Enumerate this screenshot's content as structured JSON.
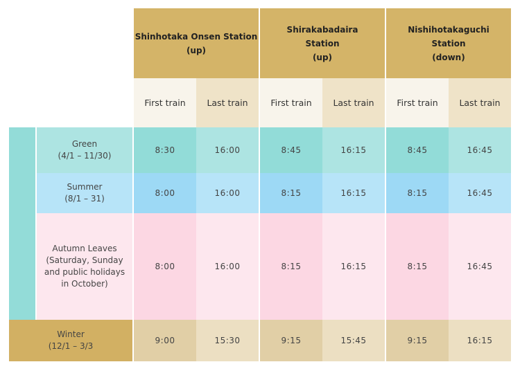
{
  "header": {
    "stations": [
      {
        "name": "Shinhotaka Onsen Station\n(up)"
      },
      {
        "name": "Shirakabadaira\nStation\n(up)"
      },
      {
        "name": "Nishihotakaguchi\nStation\n(down)"
      }
    ],
    "first_train": "First train",
    "last_train": "Last train"
  },
  "seasons": [
    {
      "label": "Green\n(4/1 – 11/30)",
      "times": [
        "8:30",
        "16:00",
        "8:45",
        "16:15",
        "8:45",
        "16:45"
      ]
    },
    {
      "label": "Summer\n(8/1 – 31)",
      "times": [
        "8:00",
        "16:00",
        "8:15",
        "16:15",
        "8:15",
        "16:45"
      ]
    },
    {
      "label": "Autumn Leaves\n(Saturday, Sunday\nand public holidays\nin October)",
      "times": [
        "8:00",
        "16:00",
        "8:15",
        "16:15",
        "8:15",
        "16:45"
      ]
    },
    {
      "label": "Winter\n(12/1 – 3/3",
      "times": [
        "9:00",
        "15:30",
        "9:15",
        "15:45",
        "9:15",
        "16:15"
      ]
    }
  ],
  "colors": {
    "header_gold": "#d4b468",
    "winter_gold": "#d2b063",
    "teal_bar": "#93dcd8",
    "green_dark": "#92dcd8",
    "green_light": "#ade4e2",
    "summer_dark": "#9dd9f5",
    "summer_light": "#b7e4f8",
    "autumn_dark": "#fcd7e3",
    "autumn_light": "#fde7ee",
    "winter_dark": "#e1cfa6",
    "winter_light": "#ecdfc2",
    "first_bg": "#f8f4eb",
    "last_bg": "#efe3c8"
  }
}
